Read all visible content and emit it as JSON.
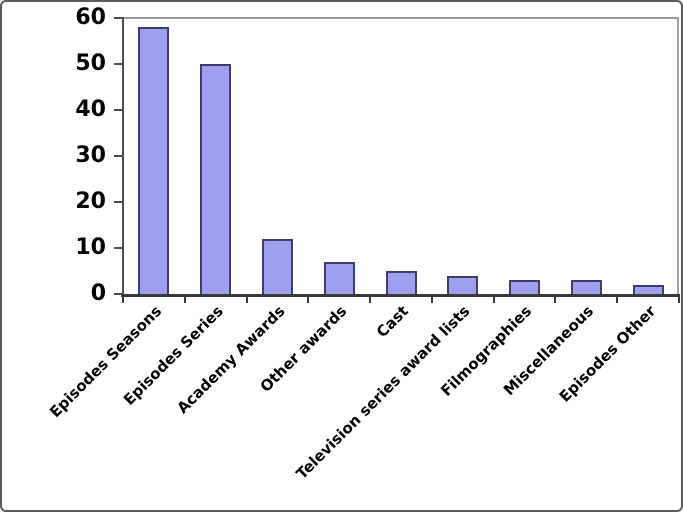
{
  "chart_data": {
    "type": "bar",
    "title": "",
    "xlabel": "",
    "ylabel": "",
    "categories": [
      "Episodes Seasons",
      "Episodes Series",
      "Academy Awards",
      "Other awards",
      "Cast",
      "Television series award lists",
      "Filmographies",
      "Miscellaneous",
      "Episodes Other"
    ],
    "values": [
      58,
      50,
      12,
      7,
      5,
      4,
      3,
      3,
      2
    ],
    "ylim": [
      0,
      60
    ],
    "yticks": [
      0,
      10,
      20,
      30,
      40,
      50,
      60
    ],
    "grid": false,
    "legend": false,
    "colors": {
      "bar_fill": "#9f9ff0",
      "bar_border": "#3e3e66",
      "axis": "#4d4d4d",
      "x_axis": "#3a3a3a",
      "plot_border": "#9a9a9a",
      "label_text": "#000000",
      "background": "#ffffff",
      "frame_border": "#5c5c5c"
    }
  }
}
